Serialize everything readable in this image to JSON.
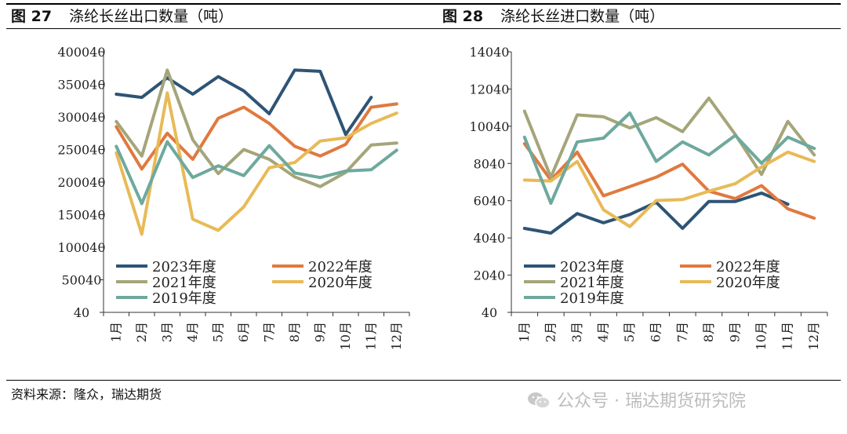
{
  "figures": [
    {
      "label": "图 27",
      "title": "涤纶长丝出口数量（吨）"
    },
    {
      "label": "图 28",
      "title": "涤纶长丝进口数量（吨）"
    }
  ],
  "source": "资料来源：隆众，瑞达期货",
  "watermark": "公众号 · 瑞达期货研究院",
  "chart_data": [
    {
      "type": "line",
      "title": "涤纶长丝出口数量（吨）",
      "categories": [
        "1月",
        "2月",
        "3月",
        "4月",
        "5月",
        "6月",
        "7月",
        "8月",
        "9月",
        "10月",
        "11月",
        "12月"
      ],
      "yticks": [
        "40",
        "50040",
        "100040",
        "150040",
        "200040",
        "250040",
        "300040",
        "350040",
        "400040"
      ],
      "ylim": [
        40,
        400040
      ],
      "grid": false,
      "legend_position": "bottom-inside",
      "series": [
        {
          "name": "2023年度",
          "color": "#2e5475",
          "values": [
            335000,
            330000,
            360000,
            335000,
            362000,
            340000,
            305000,
            372000,
            370000,
            273000,
            330000,
            null
          ]
        },
        {
          "name": "2022年度",
          "color": "#e0793e",
          "values": [
            285000,
            220000,
            275000,
            235000,
            298000,
            315000,
            290000,
            255000,
            240000,
            258000,
            315000,
            320000
          ]
        },
        {
          "name": "2021年度",
          "color": "#a5a57a",
          "values": [
            293000,
            240000,
            372000,
            265000,
            213000,
            250000,
            235000,
            208000,
            193000,
            215000,
            257000,
            260000
          ]
        },
        {
          "name": "2020年度",
          "color": "#e8ba57",
          "values": [
            245000,
            120000,
            337000,
            143000,
            126000,
            162000,
            222000,
            230000,
            263000,
            268000,
            290000,
            306000
          ]
        },
        {
          "name": "2019年度",
          "color": "#6ea99d",
          "values": [
            255000,
            167000,
            262000,
            207000,
            225000,
            210000,
            256000,
            214000,
            207000,
            217000,
            219000,
            249000
          ]
        }
      ]
    },
    {
      "type": "line",
      "title": "涤纶长丝进口数量（吨）",
      "categories": [
        "1月",
        "2月",
        "3月",
        "4月",
        "5月",
        "6月",
        "7月",
        "8月",
        "9月",
        "10月",
        "11月",
        "12月"
      ],
      "yticks": [
        "40",
        "2040",
        "4040",
        "6040",
        "8040",
        "10040",
        "12040",
        "14040"
      ],
      "ylim": [
        40,
        14040
      ],
      "grid": false,
      "legend_position": "bottom-inside",
      "series": [
        {
          "name": "2023年度",
          "color": "#2e5475",
          "values": [
            4550,
            4300,
            5350,
            4850,
            5300,
            5950,
            4550,
            6000,
            6000,
            6450,
            5850,
            null
          ]
        },
        {
          "name": "2022年度",
          "color": "#e0793e",
          "values": [
            9100,
            7150,
            8650,
            6300,
            6800,
            7300,
            8000,
            6550,
            6150,
            6850,
            5600,
            5100
          ]
        },
        {
          "name": "2021年度",
          "color": "#a5a57a",
          "values": [
            10850,
            7300,
            10650,
            10550,
            9950,
            10500,
            9750,
            11550,
            9600,
            7450,
            10300,
            8500
          ]
        },
        {
          "name": "2020年度",
          "color": "#e8ba57",
          "values": [
            7150,
            7100,
            8150,
            5550,
            4650,
            6050,
            6100,
            6550,
            6950,
            7850,
            8650,
            8150
          ]
        },
        {
          "name": "2019年度",
          "color": "#6ea99d",
          "values": [
            9450,
            5900,
            9200,
            9400,
            10750,
            8150,
            9200,
            8500,
            9550,
            8050,
            9450,
            8850
          ]
        }
      ]
    }
  ]
}
